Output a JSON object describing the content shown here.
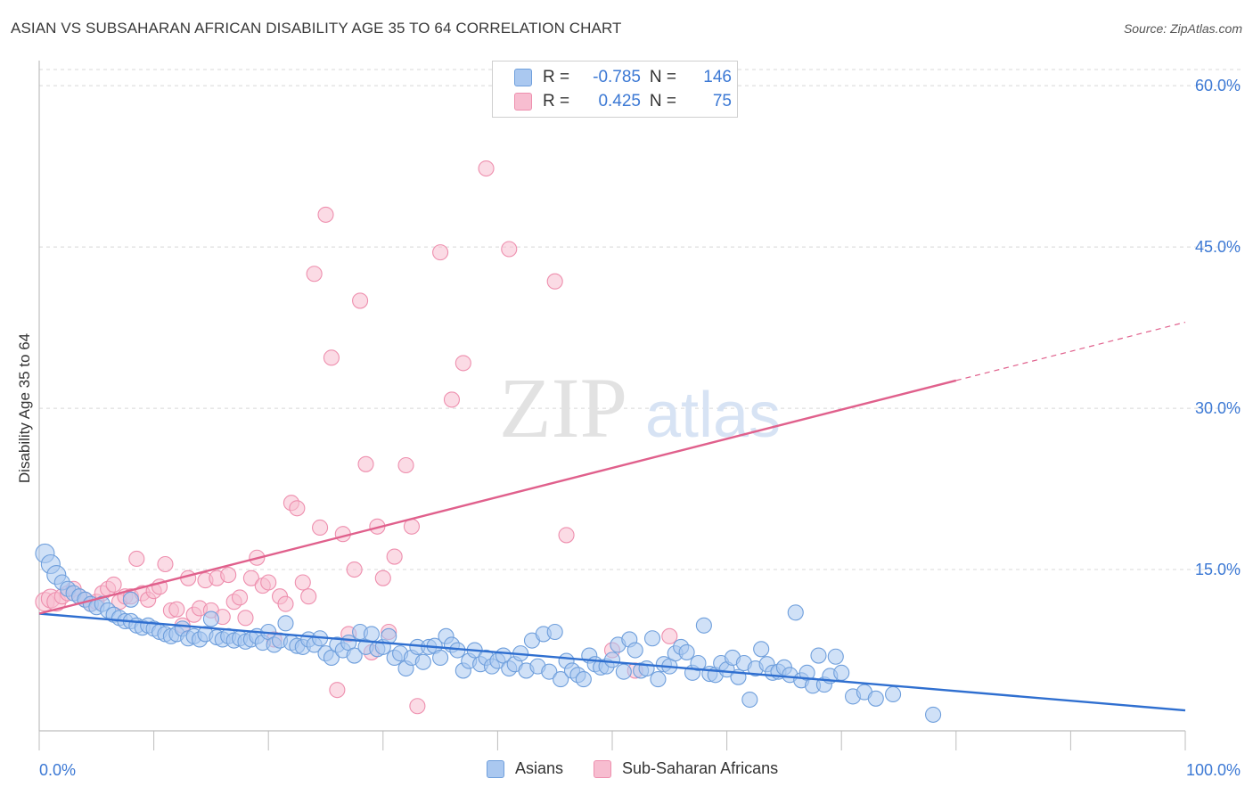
{
  "title": "ASIAN VS SUBSAHARAN AFRICAN DISABILITY AGE 35 TO 64 CORRELATION CHART",
  "source": "Source: ZipAtlas.com",
  "watermark": {
    "zip": "ZIP",
    "atlas": "atlas"
  },
  "legend": {
    "rows": [
      {
        "r_label": "R =",
        "r_value": "-0.785",
        "n_label": "N =",
        "n_value": "146"
      },
      {
        "r_label": "R =",
        "r_value": "0.425",
        "n_label": "N =",
        "n_value": "75"
      }
    ]
  },
  "colors": {
    "asian_fill": "#aac8f0",
    "asian_stroke": "#6f9fdc",
    "asian_line": "#2f6fd0",
    "african_fill": "#f7bdd0",
    "african_stroke": "#ee8fae",
    "african_line": "#e0608c",
    "tick_label": "#3b78d4",
    "grid": "#d8d8d8"
  },
  "chart_data": {
    "type": "scatter",
    "title": "ASIAN VS SUBSAHARAN AFRICAN DISABILITY AGE 35 TO 64 CORRELATION CHART",
    "xlabel": "",
    "ylabel": "Disability Age 35 to 64",
    "xlim": [
      0,
      100
    ],
    "ylim": [
      0,
      62
    ],
    "x_tick_labels": [
      "0.0%",
      "100.0%"
    ],
    "y_ticks": [
      15,
      30,
      45,
      60
    ],
    "y_tick_labels": [
      "15.0%",
      "30.0%",
      "45.0%",
      "60.0%"
    ],
    "grid": true,
    "legend_position": "bottom-center",
    "series": [
      {
        "name": "Asians",
        "r": -0.785,
        "n": 146,
        "trend": {
          "x": [
            0,
            100
          ],
          "y": [
            10.9,
            1.9
          ],
          "dashed_from": null
        },
        "points": [
          [
            0.5,
            16.5
          ],
          [
            1,
            15.5
          ],
          [
            1.5,
            14.5
          ],
          [
            2,
            13.8
          ],
          [
            2.5,
            13.2
          ],
          [
            3,
            12.8
          ],
          [
            3.5,
            12.5
          ],
          [
            4,
            12.2
          ],
          [
            4.5,
            11.8
          ],
          [
            5,
            11.5
          ],
          [
            5.5,
            11.8
          ],
          [
            6,
            11.2
          ],
          [
            6.5,
            10.8
          ],
          [
            7,
            10.5
          ],
          [
            7.5,
            10.2
          ],
          [
            8,
            10.2
          ],
          [
            8,
            12.2
          ],
          [
            8.5,
            9.8
          ],
          [
            9,
            9.6
          ],
          [
            9.5,
            9.8
          ],
          [
            10,
            9.5
          ],
          [
            10.5,
            9.2
          ],
          [
            11,
            9.0
          ],
          [
            11.5,
            8.8
          ],
          [
            12,
            9.0
          ],
          [
            12.5,
            9.5
          ],
          [
            13,
            8.6
          ],
          [
            13.5,
            8.8
          ],
          [
            14,
            8.5
          ],
          [
            14.5,
            9.0
          ],
          [
            15,
            10.4
          ],
          [
            15.5,
            8.7
          ],
          [
            16,
            8.5
          ],
          [
            16.5,
            8.8
          ],
          [
            17,
            8.4
          ],
          [
            17.5,
            8.6
          ],
          [
            18,
            8.3
          ],
          [
            18.5,
            8.5
          ],
          [
            19,
            8.8
          ],
          [
            19.5,
            8.2
          ],
          [
            20,
            9.2
          ],
          [
            20.5,
            8.0
          ],
          [
            21,
            8.4
          ],
          [
            21.5,
            10.0
          ],
          [
            22,
            8.2
          ],
          [
            22.5,
            7.9
          ],
          [
            23,
            7.8
          ],
          [
            23.5,
            8.5
          ],
          [
            24,
            8.0
          ],
          [
            24.5,
            8.6
          ],
          [
            25,
            7.2
          ],
          [
            25.5,
            6.8
          ],
          [
            26,
            8.0
          ],
          [
            26.5,
            7.5
          ],
          [
            27,
            8.2
          ],
          [
            27.5,
            7.0
          ],
          [
            28,
            9.2
          ],
          [
            28.5,
            7.8
          ],
          [
            29,
            9.0
          ],
          [
            29.5,
            7.6
          ],
          [
            30,
            7.8
          ],
          [
            30.5,
            8.8
          ],
          [
            31,
            6.8
          ],
          [
            31.5,
            7.2
          ],
          [
            32,
            5.8
          ],
          [
            32.5,
            6.8
          ],
          [
            33,
            7.8
          ],
          [
            33.5,
            6.4
          ],
          [
            34,
            7.8
          ],
          [
            34.5,
            7.9
          ],
          [
            35,
            6.8
          ],
          [
            35.5,
            8.8
          ],
          [
            36,
            8.0
          ],
          [
            36.5,
            7.5
          ],
          [
            37,
            5.6
          ],
          [
            37.5,
            6.5
          ],
          [
            38,
            7.5
          ],
          [
            38.5,
            6.2
          ],
          [
            39,
            6.8
          ],
          [
            39.5,
            6.0
          ],
          [
            40,
            6.5
          ],
          [
            40.5,
            7.0
          ],
          [
            41,
            5.8
          ],
          [
            41.5,
            6.2
          ],
          [
            42,
            7.2
          ],
          [
            42.5,
            5.6
          ],
          [
            43,
            8.4
          ],
          [
            43.5,
            6.0
          ],
          [
            44,
            9.0
          ],
          [
            44.5,
            5.5
          ],
          [
            45,
            9.2
          ],
          [
            45.5,
            4.8
          ],
          [
            46,
            6.5
          ],
          [
            46.5,
            5.6
          ],
          [
            47,
            5.2
          ],
          [
            47.5,
            4.8
          ],
          [
            48,
            7.0
          ],
          [
            48.5,
            6.2
          ],
          [
            49,
            5.9
          ],
          [
            49.5,
            6.0
          ],
          [
            50,
            6.6
          ],
          [
            50.5,
            8.0
          ],
          [
            51,
            5.5
          ],
          [
            51.5,
            8.5
          ],
          [
            52,
            7.5
          ],
          [
            52.5,
            5.6
          ],
          [
            53,
            5.8
          ],
          [
            53.5,
            8.6
          ],
          [
            54,
            4.8
          ],
          [
            54.5,
            6.2
          ],
          [
            55,
            6.0
          ],
          [
            55.5,
            7.2
          ],
          [
            56,
            7.8
          ],
          [
            56.5,
            7.3
          ],
          [
            57,
            5.4
          ],
          [
            57.5,
            6.3
          ],
          [
            58,
            9.8
          ],
          [
            58.5,
            5.3
          ],
          [
            59,
            5.2
          ],
          [
            59.5,
            6.3
          ],
          [
            60,
            5.7
          ],
          [
            60.5,
            6.8
          ],
          [
            61,
            5.0
          ],
          [
            61.5,
            6.3
          ],
          [
            62,
            2.9
          ],
          [
            62.5,
            5.8
          ],
          [
            63,
            7.6
          ],
          [
            63.5,
            6.2
          ],
          [
            64,
            5.4
          ],
          [
            64.5,
            5.5
          ],
          [
            65,
            5.9
          ],
          [
            65.5,
            5.2
          ],
          [
            66,
            11.0
          ],
          [
            66.5,
            4.7
          ],
          [
            67,
            5.4
          ],
          [
            67.5,
            4.2
          ],
          [
            68,
            7.0
          ],
          [
            68.5,
            4.3
          ],
          [
            69,
            5.1
          ],
          [
            69.5,
            6.9
          ],
          [
            70,
            5.4
          ],
          [
            71,
            3.2
          ],
          [
            72,
            3.6
          ],
          [
            73,
            3.0
          ],
          [
            74.5,
            3.4
          ],
          [
            78,
            1.5
          ]
        ]
      },
      {
        "name": "Sub-Saharan Africans",
        "r": 0.425,
        "n": 75,
        "trend": {
          "x": [
            0,
            100
          ],
          "y": [
            10.9,
            38.0
          ],
          "dashed_from": 80
        },
        "points": [
          [
            0.5,
            12.0
          ],
          [
            1,
            12.3
          ],
          [
            1.5,
            12.0
          ],
          [
            2,
            12.5
          ],
          [
            2.5,
            12.8
          ],
          [
            3,
            13.2
          ],
          [
            3.5,
            12.5
          ],
          [
            4,
            12.2
          ],
          [
            4.5,
            11.8
          ],
          [
            5,
            12.0
          ],
          [
            5.5,
            12.8
          ],
          [
            6,
            13.2
          ],
          [
            6.5,
            13.6
          ],
          [
            7,
            12.0
          ],
          [
            7.5,
            12.5
          ],
          [
            8,
            12.5
          ],
          [
            8.5,
            16.0
          ],
          [
            9,
            12.8
          ],
          [
            9.5,
            12.2
          ],
          [
            10,
            13.0
          ],
          [
            10.5,
            13.4
          ],
          [
            11,
            15.5
          ],
          [
            11.5,
            11.2
          ],
          [
            12,
            11.3
          ],
          [
            12.5,
            9.8
          ],
          [
            13,
            14.2
          ],
          [
            13.5,
            10.8
          ],
          [
            14,
            11.4
          ],
          [
            14.5,
            14.0
          ],
          [
            15,
            11.2
          ],
          [
            15.5,
            14.2
          ],
          [
            16,
            10.6
          ],
          [
            16.5,
            14.5
          ],
          [
            17,
            12.0
          ],
          [
            17.5,
            12.4
          ],
          [
            18,
            10.5
          ],
          [
            18.5,
            14.2
          ],
          [
            19,
            16.1
          ],
          [
            19.5,
            13.5
          ],
          [
            20,
            13.8
          ],
          [
            20.5,
            8.5
          ],
          [
            21,
            12.5
          ],
          [
            21.5,
            11.8
          ],
          [
            22,
            21.2
          ],
          [
            22.5,
            20.7
          ],
          [
            23,
            13.8
          ],
          [
            23.5,
            12.5
          ],
          [
            24,
            42.5
          ],
          [
            24.5,
            18.9
          ],
          [
            25,
            48.0
          ],
          [
            25.5,
            34.7
          ],
          [
            26,
            3.8
          ],
          [
            26.5,
            18.3
          ],
          [
            27,
            9.0
          ],
          [
            27.5,
            15.0
          ],
          [
            28,
            40.0
          ],
          [
            28.5,
            24.8
          ],
          [
            29,
            7.3
          ],
          [
            29.5,
            19.0
          ],
          [
            30,
            14.2
          ],
          [
            30.5,
            9.2
          ],
          [
            31,
            16.2
          ],
          [
            32,
            24.7
          ],
          [
            32.5,
            19.0
          ],
          [
            33,
            2.3
          ],
          [
            35,
            44.5
          ],
          [
            36,
            30.8
          ],
          [
            37,
            34.2
          ],
          [
            39,
            52.3
          ],
          [
            41,
            44.8
          ],
          [
            45,
            41.8
          ],
          [
            46,
            18.2
          ],
          [
            50,
            7.5
          ],
          [
            52,
            5.6
          ],
          [
            55,
            8.8
          ]
        ]
      }
    ]
  },
  "axis": {
    "ylabel": "Disability Age 35 to 64",
    "x_left_label": "0.0%",
    "x_right_label": "100.0%",
    "y_tick_labels": [
      "15.0%",
      "30.0%",
      "45.0%",
      "60.0%"
    ]
  },
  "bottom_legend": [
    "Asians",
    "Sub-Saharan Africans"
  ]
}
